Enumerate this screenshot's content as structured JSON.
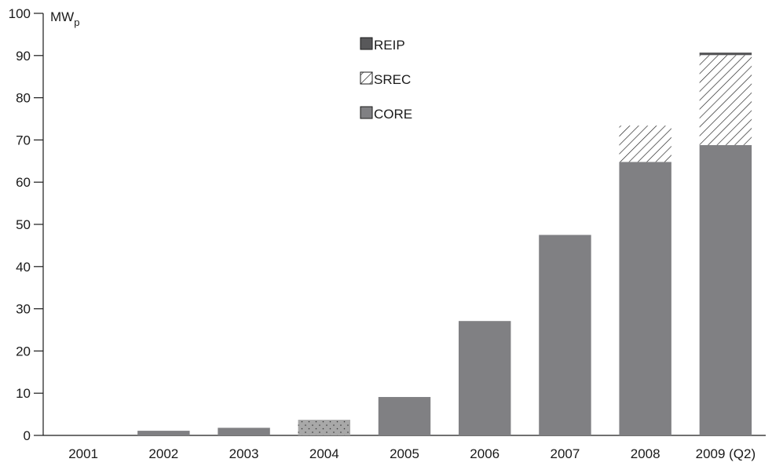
{
  "chart_data": {
    "type": "bar",
    "stacked": true,
    "unit_label": {
      "main": "MW",
      "sub": "p"
    },
    "categories": [
      "2001",
      "2002",
      "2003",
      "2004",
      "2005",
      "2006",
      "2007",
      "2008",
      "2009 (Q2)"
    ],
    "series": [
      {
        "name": "CORE",
        "values": [
          0,
          1.1,
          1.8,
          3.7,
          9.1,
          27.1,
          47.5,
          64.8,
          68.8
        ],
        "color": "#808083",
        "pattern": "solid"
      },
      {
        "name": "SREC",
        "values": [
          0,
          0,
          0,
          0,
          0,
          0,
          0,
          8.6,
          21.3
        ],
        "color": "#ffffff",
        "pattern": "hatched"
      },
      {
        "name": "REIP",
        "values": [
          0,
          0,
          0,
          0,
          0,
          0,
          0,
          0,
          0.6
        ],
        "color": "#58585a",
        "pattern": "solid"
      }
    ],
    "highlight_bar": {
      "category": "2004",
      "pattern": "dotted",
      "color": "#a8a8a8"
    },
    "ylim": [
      0,
      100
    ],
    "yticks": [
      0,
      10,
      20,
      30,
      40,
      50,
      60,
      70,
      80,
      90,
      100
    ],
    "legend": [
      "REIP",
      "SREC",
      "CORE"
    ],
    "legend_position": "top-center",
    "grid": false
  }
}
